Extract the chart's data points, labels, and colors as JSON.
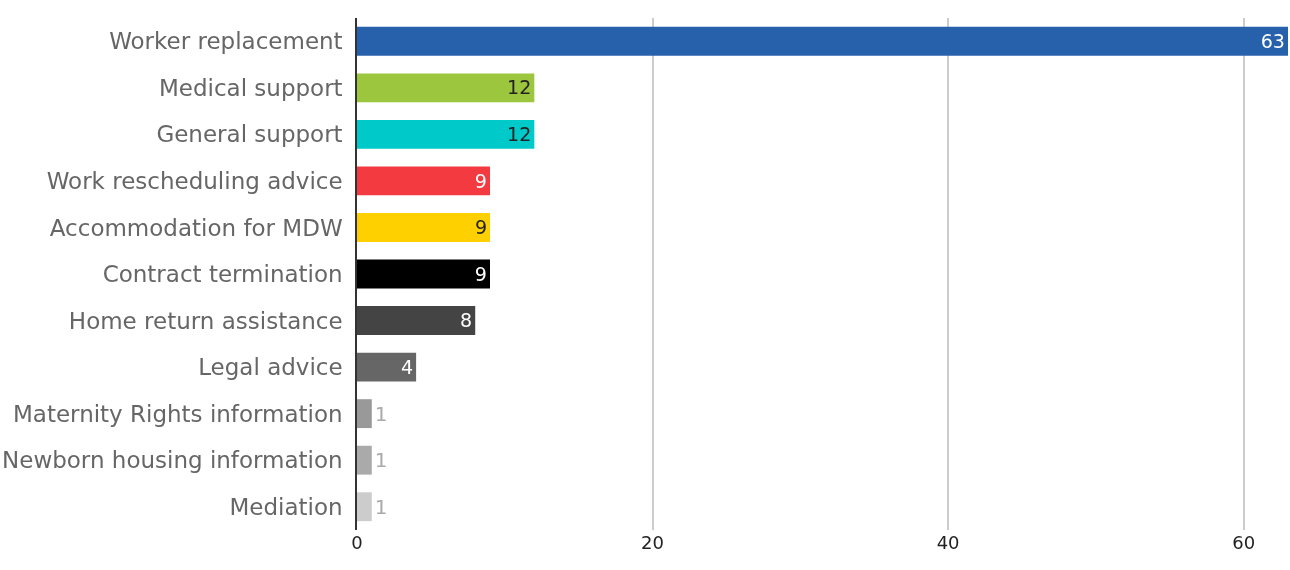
{
  "chart_data": {
    "type": "bar",
    "orientation": "horizontal",
    "categories": [
      "Worker replacement",
      "Medical support",
      "General support",
      "Work rescheduling advice",
      "Accommodation for MDW",
      "Contract termination",
      "Home return assistance",
      "Legal advice",
      "Maternity Rights information",
      "Newborn housing information",
      "Mediation"
    ],
    "values": [
      63,
      12,
      12,
      9,
      9,
      9,
      8,
      4,
      1,
      1,
      1
    ],
    "colors": [
      "#2760ab",
      "#9dc63f",
      "#00c9c9",
      "#f33a41",
      "#ffd000",
      "#000000",
      "#444444",
      "#666666",
      "#999999",
      "#aaaaaa",
      "#cccccc"
    ],
    "xlim": [
      0,
      63
    ],
    "xticks": [
      0,
      20,
      40,
      60
    ],
    "grid": "x",
    "data_labels": true,
    "legend": false
  }
}
